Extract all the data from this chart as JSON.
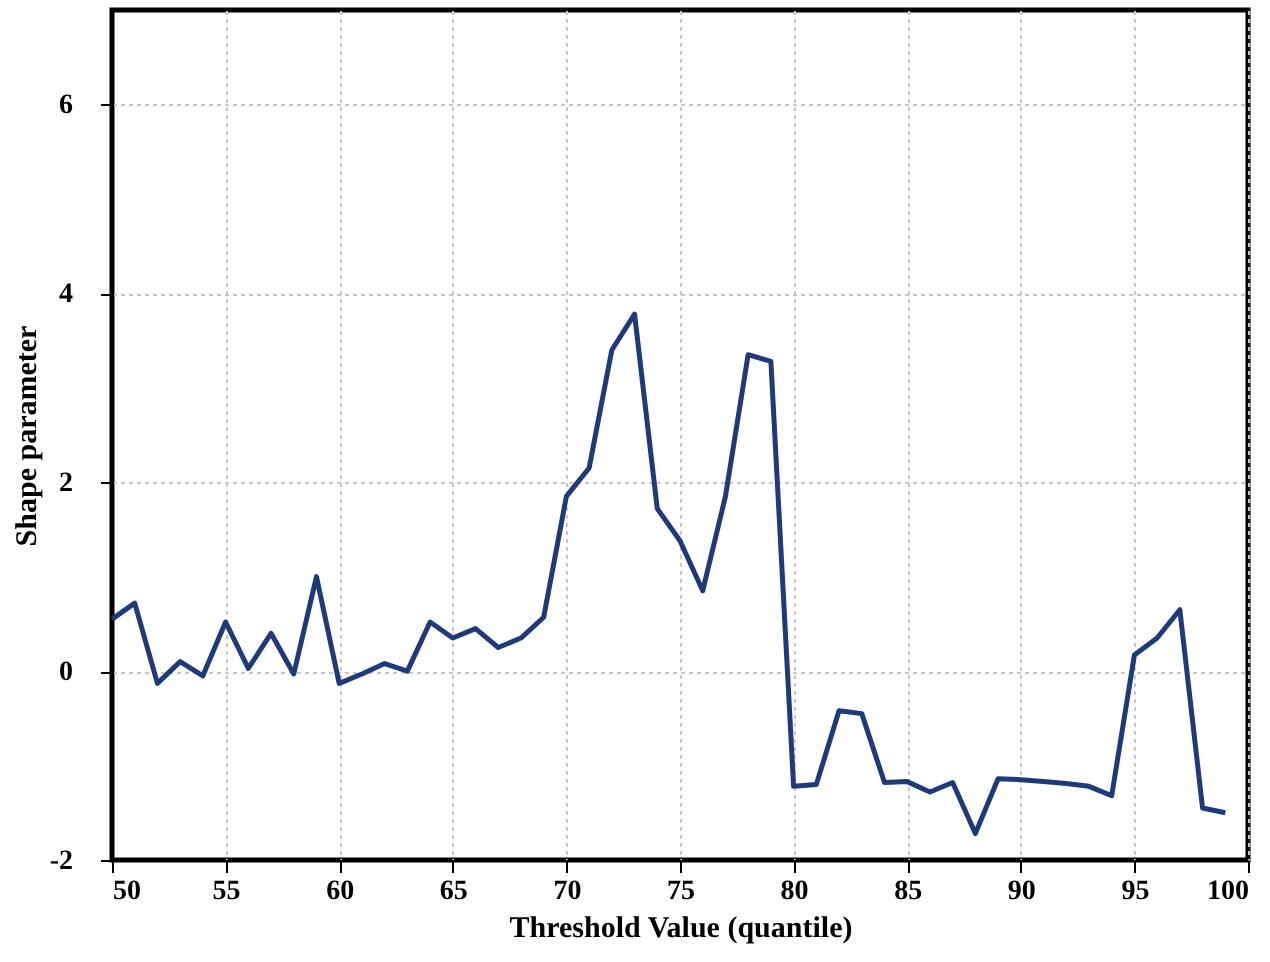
{
  "chart_data": {
    "type": "line",
    "xlabel": "Threshold Value (quantile)",
    "ylabel": "Shape parameter",
    "x": [
      50,
      51,
      52,
      53,
      54,
      55,
      56,
      57,
      58,
      59,
      60,
      61,
      62,
      63,
      64,
      65,
      66,
      67,
      68,
      69,
      70,
      71,
      72,
      73,
      74,
      75,
      76,
      77,
      78,
      79,
      80,
      81,
      82,
      83,
      84,
      85,
      86,
      87,
      88,
      89,
      90,
      91,
      92,
      93,
      94,
      95,
      96,
      97,
      98,
      99
    ],
    "series": [
      {
        "color": "#1f3a7a",
        "values": [
          0.55,
          0.72,
          -0.13,
          0.1,
          -0.05,
          0.52,
          0.03,
          0.4,
          -0.03,
          1.0,
          -0.13,
          -0.03,
          0.08,
          0.0,
          0.52,
          0.35,
          0.45,
          0.25,
          0.35,
          0.57,
          1.85,
          2.15,
          3.4,
          3.78,
          1.72,
          1.38,
          0.85,
          1.85,
          3.35,
          3.28,
          -1.22,
          -1.2,
          -0.42,
          -0.45,
          -1.18,
          -1.17,
          -1.28,
          -1.18,
          -1.72,
          -1.14,
          -1.15,
          -1.17,
          -1.19,
          -1.22,
          -1.32,
          0.17,
          0.35,
          0.65,
          -1.45,
          -1.5
        ]
      }
    ],
    "xlim": [
      50,
      100
    ],
    "xticks": [
      50,
      55,
      60,
      65,
      70,
      75,
      80,
      85,
      90,
      95,
      100
    ],
    "ylim": [
      -2,
      7
    ],
    "yticks": [
      -2,
      0,
      2,
      4,
      6
    ],
    "grid": true,
    "marker": "none",
    "line_style": "solid"
  }
}
